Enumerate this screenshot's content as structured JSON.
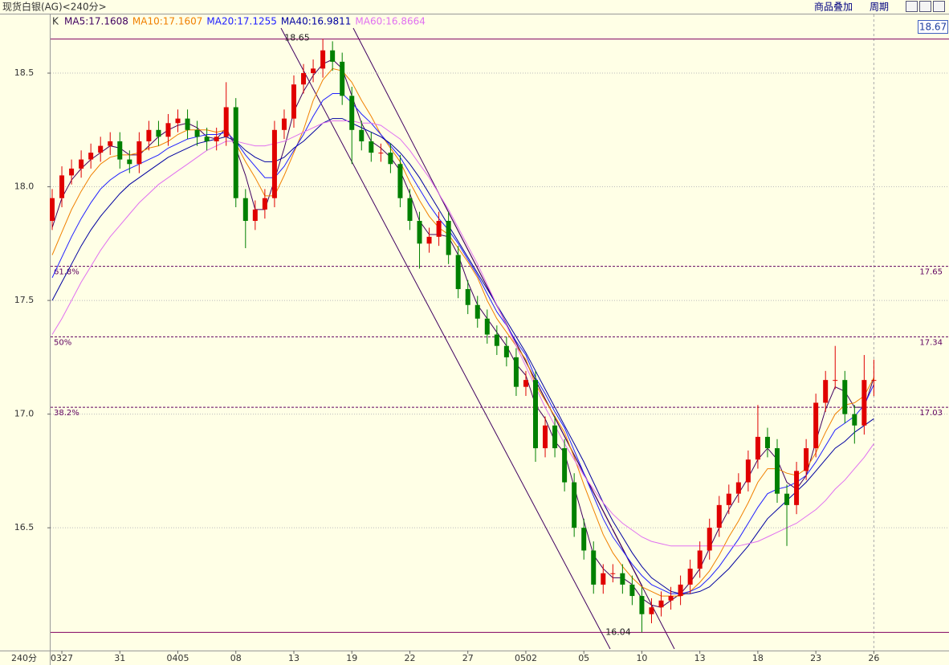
{
  "header": {
    "title": "现货白银(AG)<240分>",
    "overlay_button": "商品叠加",
    "period_button": "周期"
  },
  "chart_data": {
    "type": "candlestick",
    "period_label": "240分",
    "legend_prefix": "K",
    "price_box": "18.67",
    "up_color": "#e00000",
    "down_color": "#008000",
    "categories": [
      null,
      "0327",
      null,
      null,
      null,
      null,
      null,
      "31",
      null,
      null,
      null,
      null,
      null,
      "0405",
      null,
      null,
      null,
      null,
      null,
      "08",
      null,
      null,
      null,
      null,
      null,
      "13",
      null,
      null,
      null,
      null,
      null,
      "19",
      null,
      null,
      null,
      null,
      null,
      "22",
      null,
      null,
      null,
      null,
      null,
      "27",
      null,
      null,
      null,
      null,
      null,
      "0502",
      null,
      null,
      null,
      null,
      null,
      "05",
      null,
      null,
      null,
      null,
      null,
      "10",
      null,
      null,
      null,
      null,
      null,
      "13",
      null,
      null,
      null,
      null,
      null,
      "18",
      null,
      null,
      null,
      null,
      null,
      "23",
      null,
      null,
      null,
      null,
      null,
      "26"
    ],
    "open": [
      17.85,
      17.95,
      18.05,
      18.08,
      18.12,
      18.15,
      18.18,
      18.2,
      18.12,
      18.1,
      18.2,
      18.25,
      18.22,
      18.28,
      18.3,
      18.25,
      18.22,
      18.2,
      18.22,
      18.35,
      17.95,
      17.85,
      17.9,
      17.95,
      18.25,
      18.3,
      18.45,
      18.5,
      18.52,
      18.6,
      18.55,
      18.4,
      18.25,
      18.2,
      18.15,
      18.15,
      18.1,
      17.95,
      17.85,
      17.75,
      17.78,
      17.85,
      17.7,
      17.55,
      17.48,
      17.42,
      17.35,
      17.3,
      17.25,
      17.12,
      17.15,
      16.85,
      16.95,
      16.85,
      16.7,
      16.5,
      16.4,
      16.25,
      16.3,
      16.3,
      16.25,
      16.2,
      16.12,
      16.15,
      16.18,
      16.2,
      16.25,
      16.32,
      16.4,
      16.5,
      16.6,
      16.65,
      16.7,
      16.8,
      16.9,
      16.85,
      16.65,
      16.6,
      16.75,
      16.85,
      17.05,
      17.15,
      17.15,
      17.0,
      16.95,
      17.15
    ],
    "high": [
      17.99,
      18.09,
      18.12,
      18.16,
      18.19,
      18.22,
      18.24,
      18.24,
      18.16,
      18.24,
      18.29,
      18.29,
      18.32,
      18.34,
      18.34,
      18.29,
      18.26,
      18.26,
      18.46,
      18.39,
      17.99,
      17.94,
      17.99,
      18.29,
      18.34,
      18.49,
      18.54,
      18.56,
      18.65,
      18.64,
      18.59,
      18.44,
      18.29,
      18.24,
      18.19,
      18.19,
      18.14,
      17.99,
      17.89,
      17.82,
      17.89,
      17.89,
      17.74,
      17.59,
      17.52,
      17.46,
      17.39,
      17.34,
      17.29,
      17.19,
      17.19,
      16.99,
      16.99,
      16.89,
      16.74,
      16.54,
      16.44,
      16.34,
      16.34,
      16.34,
      16.29,
      16.24,
      16.19,
      16.22,
      16.24,
      16.29,
      16.36,
      16.44,
      16.54,
      16.64,
      16.69,
      16.74,
      16.84,
      17.04,
      16.94,
      16.89,
      16.69,
      16.79,
      16.89,
      17.09,
      17.19,
      17.3,
      17.19,
      17.04,
      17.26,
      17.24
    ],
    "low": [
      17.81,
      17.91,
      18.01,
      18.04,
      18.08,
      18.11,
      18.14,
      18.08,
      18.06,
      18.06,
      18.16,
      18.18,
      18.18,
      18.24,
      18.21,
      18.18,
      18.16,
      18.16,
      18.18,
      17.91,
      17.73,
      17.81,
      17.86,
      17.91,
      18.21,
      18.26,
      18.41,
      18.46,
      18.48,
      18.51,
      18.36,
      18.1,
      18.16,
      18.11,
      18.11,
      18.06,
      17.91,
      17.81,
      17.64,
      17.71,
      17.74,
      17.66,
      17.51,
      17.44,
      17.38,
      17.31,
      17.26,
      17.21,
      17.08,
      17.08,
      16.79,
      16.81,
      16.81,
      16.66,
      16.46,
      16.36,
      16.21,
      16.21,
      16.26,
      16.21,
      16.16,
      16.04,
      16.08,
      16.11,
      16.14,
      16.16,
      16.21,
      16.28,
      16.36,
      16.46,
      16.56,
      16.61,
      16.66,
      16.76,
      16.81,
      16.61,
      16.42,
      16.56,
      16.71,
      16.81,
      17.01,
      17.11,
      16.96,
      16.87,
      16.91,
      17.08
    ],
    "close": [
      17.95,
      18.05,
      18.08,
      18.12,
      18.15,
      18.18,
      18.2,
      18.12,
      18.1,
      18.2,
      18.25,
      18.22,
      18.28,
      18.3,
      18.25,
      18.22,
      18.2,
      18.22,
      18.35,
      17.95,
      17.85,
      17.9,
      17.95,
      18.25,
      18.3,
      18.45,
      18.5,
      18.52,
      18.6,
      18.55,
      18.4,
      18.25,
      18.2,
      18.15,
      18.15,
      18.1,
      17.95,
      17.85,
      17.75,
      17.78,
      17.85,
      17.7,
      17.55,
      17.48,
      17.42,
      17.35,
      17.3,
      17.25,
      17.12,
      17.15,
      16.85,
      16.95,
      16.85,
      16.7,
      16.5,
      16.4,
      16.25,
      16.3,
      16.3,
      16.25,
      16.2,
      16.12,
      16.15,
      16.18,
      16.2,
      16.25,
      16.32,
      16.4,
      16.5,
      16.6,
      16.65,
      16.7,
      16.8,
      16.9,
      16.85,
      16.65,
      16.6,
      16.75,
      16.85,
      17.05,
      17.15,
      17.15,
      17.0,
      16.95,
      17.15,
      17.15
    ],
    "series": [
      {
        "name": "MA5:17.1608",
        "color": "#400060",
        "values": [
          17.82,
          17.95,
          18.03,
          18.08,
          18.12,
          18.15,
          18.18,
          18.17,
          18.14,
          18.14,
          18.18,
          18.22,
          18.25,
          18.27,
          18.28,
          18.26,
          18.22,
          18.21,
          18.26,
          18.17,
          18.05,
          17.9,
          17.9,
          18.03,
          18.17,
          18.33,
          18.42,
          18.49,
          18.54,
          18.56,
          18.52,
          18.4,
          18.28,
          18.2,
          18.17,
          18.13,
          18.07,
          17.97,
          17.85,
          17.79,
          17.79,
          17.78,
          17.7,
          17.58,
          17.48,
          17.42,
          17.36,
          17.3,
          17.22,
          17.17,
          17.04,
          16.98,
          16.88,
          16.83,
          16.68,
          16.53,
          16.38,
          16.32,
          16.28,
          16.28,
          16.25,
          16.19,
          16.16,
          16.15,
          16.18,
          16.21,
          16.26,
          16.32,
          16.41,
          16.5,
          16.58,
          16.65,
          16.72,
          16.8,
          16.85,
          16.8,
          16.7,
          16.67,
          16.73,
          16.88,
          17.02,
          17.12,
          17.1,
          17.03,
          17.03,
          17.16
        ]
      },
      {
        "name": "MA10:17.1607",
        "color": "#f08000",
        "values": [
          17.7,
          17.8,
          17.9,
          17.98,
          18.05,
          18.1,
          18.13,
          18.14,
          18.14,
          18.15,
          18.17,
          18.18,
          18.2,
          18.23,
          18.25,
          18.25,
          18.25,
          18.24,
          18.25,
          18.19,
          18.11,
          18.04,
          17.96,
          17.96,
          18.05,
          18.15,
          18.25,
          18.38,
          18.47,
          18.52,
          18.51,
          18.46,
          18.38,
          18.31,
          18.23,
          18.17,
          18.11,
          18.02,
          17.94,
          17.87,
          17.82,
          17.79,
          17.73,
          17.67,
          17.6,
          17.5,
          17.42,
          17.36,
          17.3,
          17.24,
          17.13,
          17.06,
          16.99,
          16.92,
          16.81,
          16.69,
          16.58,
          16.47,
          16.39,
          16.33,
          16.28,
          16.24,
          16.22,
          16.2,
          16.2,
          16.2,
          16.22,
          16.26,
          16.31,
          16.38,
          16.46,
          16.53,
          16.61,
          16.7,
          16.76,
          16.76,
          16.74,
          16.73,
          16.76,
          16.83,
          16.92,
          17.0,
          17.04,
          17.05,
          17.08,
          17.16
        ]
      },
      {
        "name": "MA20:17.1255",
        "color": "#2020ff",
        "values": [
          17.6,
          17.69,
          17.78,
          17.86,
          17.93,
          17.99,
          18.03,
          18.06,
          18.08,
          18.1,
          18.12,
          18.14,
          18.17,
          18.19,
          18.21,
          18.22,
          18.23,
          18.23,
          18.24,
          18.2,
          18.14,
          18.09,
          18.04,
          18.04,
          18.09,
          18.16,
          18.23,
          18.31,
          18.38,
          18.41,
          18.41,
          18.37,
          18.32,
          18.28,
          18.23,
          18.18,
          18.13,
          18.06,
          17.99,
          17.92,
          17.86,
          17.81,
          17.75,
          17.68,
          17.61,
          17.53,
          17.45,
          17.39,
          17.32,
          17.26,
          17.16,
          17.09,
          17.01,
          16.94,
          16.84,
          16.74,
          16.64,
          16.54,
          16.46,
          16.4,
          16.34,
          16.29,
          16.25,
          16.23,
          16.21,
          16.21,
          16.22,
          16.24,
          16.28,
          16.33,
          16.39,
          16.45,
          16.52,
          16.59,
          16.65,
          16.67,
          16.68,
          16.7,
          16.73,
          16.79,
          16.86,
          16.93,
          16.96,
          16.99,
          17.04,
          17.13
        ]
      },
      {
        "name": "MA40:16.9811",
        "color": "#0000a0",
        "values": [
          17.5,
          17.58,
          17.66,
          17.74,
          17.81,
          17.87,
          17.92,
          17.97,
          18.01,
          18.04,
          18.07,
          18.1,
          18.13,
          18.15,
          18.17,
          18.19,
          18.2,
          18.21,
          18.22,
          18.2,
          18.16,
          18.13,
          18.11,
          18.11,
          18.13,
          18.17,
          18.2,
          18.24,
          18.28,
          18.3,
          18.3,
          18.28,
          18.26,
          18.24,
          18.22,
          18.19,
          18.15,
          18.1,
          18.04,
          17.97,
          17.9,
          17.83,
          17.76,
          17.69,
          17.62,
          17.55,
          17.48,
          17.41,
          17.34,
          17.27,
          17.19,
          17.11,
          17.03,
          16.95,
          16.87,
          16.79,
          16.7,
          16.61,
          16.53,
          16.46,
          16.39,
          16.33,
          16.28,
          16.25,
          16.22,
          16.21,
          16.21,
          16.22,
          16.24,
          16.28,
          16.32,
          16.37,
          16.42,
          16.48,
          16.54,
          16.58,
          16.62,
          16.66,
          16.7,
          16.75,
          16.8,
          16.85,
          16.88,
          16.92,
          16.95,
          16.98
        ]
      },
      {
        "name": "MA60:16.8664",
        "color": "#e070f0",
        "values": [
          17.35,
          17.42,
          17.5,
          17.58,
          17.65,
          17.72,
          17.78,
          17.83,
          17.88,
          17.93,
          17.97,
          18.01,
          18.04,
          18.07,
          18.1,
          18.13,
          18.16,
          18.18,
          18.2,
          18.2,
          18.19,
          18.18,
          18.18,
          18.19,
          18.2,
          18.22,
          18.24,
          18.26,
          18.28,
          18.29,
          18.29,
          18.29,
          18.28,
          18.28,
          18.27,
          18.24,
          18.21,
          18.16,
          18.1,
          18.04,
          17.97,
          17.9,
          17.82,
          17.74,
          17.66,
          17.57,
          17.48,
          17.39,
          17.3,
          17.21,
          17.12,
          17.03,
          16.95,
          16.87,
          16.8,
          16.73,
          16.67,
          16.61,
          16.56,
          16.52,
          16.49,
          16.46,
          16.44,
          16.43,
          16.42,
          16.42,
          16.42,
          16.42,
          16.42,
          16.42,
          16.42,
          16.42,
          16.43,
          16.44,
          16.46,
          16.48,
          16.5,
          16.52,
          16.55,
          16.58,
          16.62,
          16.67,
          16.71,
          16.76,
          16.81,
          16.87
        ]
      }
    ],
    "extremes": [
      18.65,
      16.04
    ],
    "fib_levels": [
      {
        "value": 17.65,
        "ratio": "61.8%"
      },
      {
        "value": 17.34,
        "ratio": "50%"
      },
      {
        "value": 17.03,
        "ratio": "38.2%"
      }
    ],
    "ylim": [
      15.96,
      18.758
    ],
    "yticks": [
      16.5,
      {
        "value": 17,
        "label": "17.0"
      },
      17.5,
      {
        "value": 18,
        "label": "18.0"
      },
      18.5
    ],
    "grid": true
  }
}
